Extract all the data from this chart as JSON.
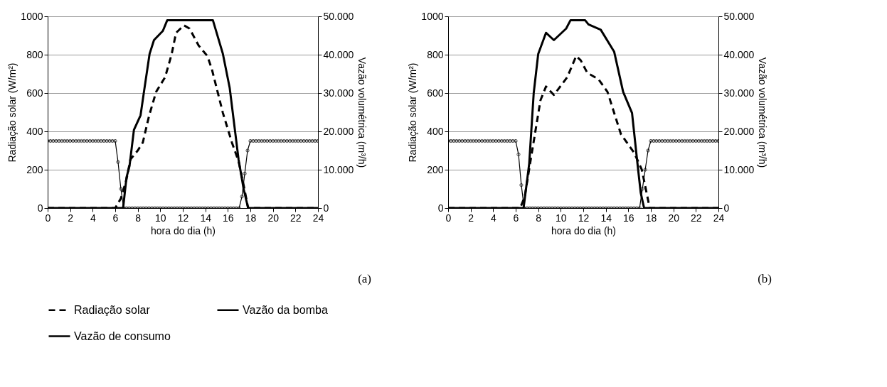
{
  "chart_data": [
    {
      "type": "line",
      "xlabel": "hora do dia (h)",
      "ylabel": "Radiação solar (W/m²)",
      "y2label": "Vazão volumétrica (m³/h)",
      "xlim": [
        0,
        24
      ],
      "xticks": [
        0,
        2,
        4,
        6,
        8,
        10,
        12,
        14,
        16,
        18,
        20,
        22,
        24
      ],
      "ylim": [
        0,
        1000
      ],
      "yticks": [
        0,
        200,
        400,
        600,
        800,
        1000
      ],
      "y2lim": [
        0,
        50000
      ],
      "y2ticks": [
        0,
        {
          "value": 10000,
          "label": "10.000"
        },
        {
          "value": 20000,
          "label": "20.000"
        },
        {
          "value": 30000,
          "label": "30.000"
        },
        {
          "value": 40000,
          "label": "40.000"
        },
        {
          "value": 50000,
          "label": "50.000"
        }
      ],
      "grid": "y",
      "legend": "bottom",
      "annotations": [
        "(a)"
      ],
      "series": [
        {
          "name": "Radiação solar",
          "color": "#000000",
          "line_style": "dashed",
          "x": [
            0,
            6,
            6.5,
            7,
            7.35,
            8,
            8.45,
            9,
            9.63,
            10.43,
            11,
            11.4,
            12.1,
            12.6,
            13.4,
            14.18,
            14.57,
            15.56,
            16.36,
            16.95,
            17.4,
            17.8,
            24
          ],
          "values": [
            0,
            0,
            50,
            150,
            254,
            300,
            342,
            480,
            606,
            683,
            800,
            914,
            953,
            936,
            848,
            793,
            727,
            496,
            342,
            244,
            120,
            0,
            0
          ]
        },
        {
          "name": "Vazão da bomba",
          "color": "#000000",
          "line_style": "solid",
          "axis": "y2",
          "x": [
            0,
            6.7,
            7.0,
            7.27,
            7.66,
            8.25,
            8.55,
            9.05,
            9.44,
            10.23,
            10.62,
            14.67,
            15.56,
            16.16,
            16.95,
            17.4,
            17.8,
            24
          ],
          "values": [
            0,
            0,
            8000,
            11000,
            20400,
            24200,
            30300,
            40200,
            43800,
            46200,
            49000,
            49000,
            40200,
            31400,
            12700,
            5000,
            0,
            0
          ]
        },
        {
          "name": "Vazão de consumo",
          "color": "#000000",
          "line_style": "solid",
          "marker": "circle",
          "axis": "y2",
          "x": [
            0,
            0.25,
            0.5,
            0.75,
            1,
            1.25,
            1.5,
            1.75,
            2,
            2.25,
            2.5,
            2.75,
            3,
            3.25,
            3.5,
            3.75,
            4,
            4.25,
            4.5,
            4.75,
            5,
            5.25,
            5.5,
            5.75,
            6,
            6.25,
            6.5,
            6.75,
            7,
            7.25,
            7.5,
            7.75,
            8,
            8.25,
            8.5,
            8.75,
            9,
            9.25,
            9.5,
            9.75,
            10,
            10.25,
            10.5,
            10.75,
            11,
            11.25,
            11.5,
            11.75,
            12,
            12.25,
            12.5,
            12.75,
            13,
            13.25,
            13.5,
            13.75,
            14,
            14.25,
            14.5,
            14.75,
            15,
            15.25,
            15.5,
            15.75,
            16,
            16.25,
            16.5,
            16.75,
            17,
            17.25,
            17.5,
            17.75,
            18,
            18.25,
            18.5,
            18.75,
            19,
            19.25,
            19.5,
            19.75,
            20,
            20.25,
            20.5,
            20.75,
            21,
            21.25,
            21.5,
            21.75,
            22,
            22.25,
            22.5,
            22.75,
            23,
            23.25,
            23.5,
            23.75,
            24
          ],
          "values": [
            17500,
            17500,
            17500,
            17500,
            17500,
            17500,
            17500,
            17500,
            17500,
            17500,
            17500,
            17500,
            17500,
            17500,
            17500,
            17500,
            17500,
            17500,
            17500,
            17500,
            17500,
            17500,
            17500,
            17500,
            17500,
            12000,
            5000,
            0,
            0,
            0,
            0,
            0,
            0,
            0,
            0,
            0,
            0,
            0,
            0,
            0,
            0,
            0,
            0,
            0,
            0,
            0,
            0,
            0,
            0,
            0,
            0,
            0,
            0,
            0,
            0,
            0,
            0,
            0,
            0,
            0,
            0,
            0,
            0,
            0,
            0,
            0,
            0,
            0,
            0,
            3000,
            9000,
            15000,
            17500,
            17500,
            17500,
            17500,
            17500,
            17500,
            17500,
            17500,
            17500,
            17500,
            17500,
            17500,
            17500,
            17500,
            17500,
            17500,
            17500,
            17500,
            17500,
            17500,
            17500,
            17500,
            17500,
            17500,
            17500
          ]
        }
      ]
    },
    {
      "type": "line",
      "xlabel": "hora do dia (h)",
      "ylabel": "Radiação solar (W/m²)",
      "y2label": "Vazão volumétrica (m³/h)",
      "xlim": [
        0,
        24
      ],
      "xticks": [
        0,
        2,
        4,
        6,
        8,
        10,
        12,
        14,
        16,
        18,
        20,
        22,
        24
      ],
      "ylim": [
        0,
        1000
      ],
      "yticks": [
        0,
        200,
        400,
        600,
        800,
        1000
      ],
      "y2lim": [
        0,
        50000
      ],
      "y2ticks": [
        0,
        {
          "value": 10000,
          "label": "10.000"
        },
        {
          "value": 20000,
          "label": "20.000"
        },
        {
          "value": 30000,
          "label": "30.000"
        },
        {
          "value": 40000,
          "label": "40.000"
        },
        {
          "value": 50000,
          "label": "50.000"
        }
      ],
      "grid": "y",
      "legend": "bottom",
      "annotations": [
        "(b)"
      ],
      "series": [
        {
          "name": "Radiação solar",
          "color": "#000000",
          "line_style": "dashed",
          "x": [
            0,
            6.4,
            6.8,
            7.4,
            8.2,
            8.69,
            9.39,
            10.58,
            11.37,
            11.77,
            12.36,
            13.35,
            14.15,
            15.34,
            16.53,
            17.2,
            17.9,
            24
          ],
          "values": [
            0,
            0,
            60,
            276,
            562,
            634,
            590,
            683,
            793,
            771,
            705,
            672,
            606,
            386,
            287,
            200,
            0,
            0
          ]
        },
        {
          "name": "Vazão da bomba",
          "color": "#000000",
          "line_style": "solid",
          "axis": "y2",
          "x": [
            0,
            6.7,
            7.2,
            7.6,
            8.0,
            8.69,
            9.39,
            10.48,
            10.87,
            12.16,
            12.46,
            13.55,
            14.74,
            15.54,
            16.33,
            16.73,
            17.1,
            17.4,
            24
          ],
          "values": [
            0,
            0,
            11600,
            30000,
            40200,
            45700,
            43800,
            46800,
            49000,
            49000,
            47900,
            46500,
            40800,
            30300,
            24800,
            13800,
            4000,
            0,
            0
          ]
        },
        {
          "name": "Vazão de consumo",
          "color": "#000000",
          "line_style": "solid",
          "marker": "circle",
          "axis": "y2",
          "x": [
            0,
            0.25,
            0.5,
            0.75,
            1,
            1.25,
            1.5,
            1.75,
            2,
            2.25,
            2.5,
            2.75,
            3,
            3.25,
            3.5,
            3.75,
            4,
            4.25,
            4.5,
            4.75,
            5,
            5.25,
            5.5,
            5.75,
            6,
            6.25,
            6.5,
            6.75,
            7,
            7.25,
            7.5,
            7.75,
            8,
            8.25,
            8.5,
            8.75,
            9,
            9.25,
            9.5,
            9.75,
            10,
            10.25,
            10.5,
            10.75,
            11,
            11.25,
            11.5,
            11.75,
            12,
            12.25,
            12.5,
            12.75,
            13,
            13.25,
            13.5,
            13.75,
            14,
            14.25,
            14.5,
            14.75,
            15,
            15.25,
            15.5,
            15.75,
            16,
            16.25,
            16.5,
            16.75,
            17,
            17.25,
            17.5,
            17.75,
            18,
            18.25,
            18.5,
            18.75,
            19,
            19.25,
            19.5,
            19.75,
            20,
            20.25,
            20.5,
            20.75,
            21,
            21.25,
            21.5,
            21.75,
            22,
            22.25,
            22.5,
            22.75,
            23,
            23.25,
            23.5,
            23.75,
            24
          ],
          "values": [
            17500,
            17500,
            17500,
            17500,
            17500,
            17500,
            17500,
            17500,
            17500,
            17500,
            17500,
            17500,
            17500,
            17500,
            17500,
            17500,
            17500,
            17500,
            17500,
            17500,
            17500,
            17500,
            17500,
            17500,
            17500,
            14000,
            6000,
            0,
            0,
            0,
            0,
            0,
            0,
            0,
            0,
            0,
            0,
            0,
            0,
            0,
            0,
            0,
            0,
            0,
            0,
            0,
            0,
            0,
            0,
            0,
            0,
            0,
            0,
            0,
            0,
            0,
            0,
            0,
            0,
            0,
            0,
            0,
            0,
            0,
            0,
            0,
            0,
            0,
            0,
            5000,
            10000,
            15000,
            17500,
            17500,
            17500,
            17500,
            17500,
            17500,
            17500,
            17500,
            17500,
            17500,
            17500,
            17500,
            17500,
            17500,
            17500,
            17500,
            17500,
            17500,
            17500,
            17500,
            17500,
            17500,
            17500,
            17500,
            17500
          ]
        }
      ]
    }
  ]
}
